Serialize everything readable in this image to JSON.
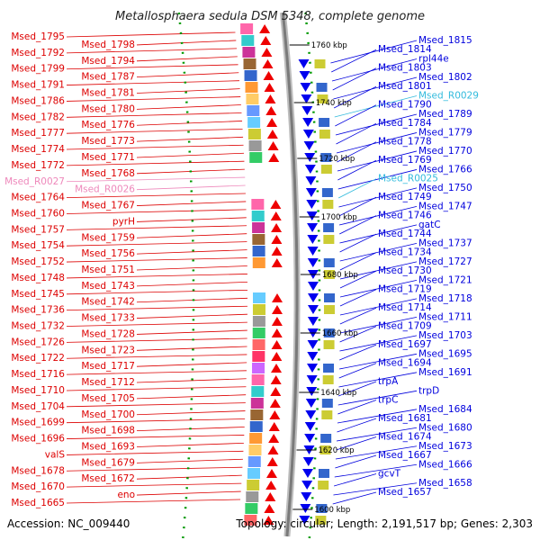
{
  "title": "Metallosphaera sedula DSM 5348, complete genome",
  "footer": {
    "accession": "Accession: NC_009440",
    "summary": "Topology: circular; Length: 2,191,517 bp; Genes: 2,303"
  },
  "colors": {
    "left_label": "#dd0000",
    "right_label": "#0000dd",
    "rna_left": "#ee88bb",
    "rna_right": "#33bbdd",
    "tick": "#009900"
  },
  "scale_ticks": [
    "1760 kbp",
    "1740 kbp",
    "1720 kbp",
    "1700 kbp",
    "1680 kbp",
    "1660 kbp",
    "1640 kbp",
    "1620 kbp",
    "1600 kbp"
  ],
  "left_labels": [
    {
      "t": "Msed_1795",
      "k": "g"
    },
    {
      "t": "Msed_1798",
      "k": "g"
    },
    {
      "t": "Msed_1792",
      "k": "g"
    },
    {
      "t": "Msed_1794",
      "k": "g"
    },
    {
      "t": "Msed_1799",
      "k": "g"
    },
    {
      "t": "Msed_1787",
      "k": "g"
    },
    {
      "t": "Msed_1791",
      "k": "g"
    },
    {
      "t": "Msed_1781",
      "k": "g"
    },
    {
      "t": "Msed_1786",
      "k": "g"
    },
    {
      "t": "Msed_1780",
      "k": "g"
    },
    {
      "t": "Msed_1782",
      "k": "g"
    },
    {
      "t": "Msed_1776",
      "k": "g"
    },
    {
      "t": "Msed_1777",
      "k": "g"
    },
    {
      "t": "Msed_1773",
      "k": "g"
    },
    {
      "t": "Msed_1774",
      "k": "g"
    },
    {
      "t": "Msed_1771",
      "k": "g"
    },
    {
      "t": "Msed_1772",
      "k": "g"
    },
    {
      "t": "Msed_1768",
      "k": "g"
    },
    {
      "t": "Msed_R0027",
      "k": "r"
    },
    {
      "t": "Msed_R0026",
      "k": "r"
    },
    {
      "t": "Msed_1764",
      "k": "g"
    },
    {
      "t": "Msed_1767",
      "k": "g"
    },
    {
      "t": "Msed_1760",
      "k": "g"
    },
    {
      "t": "pyrH",
      "k": "g"
    },
    {
      "t": "Msed_1757",
      "k": "g"
    },
    {
      "t": "Msed_1759",
      "k": "g"
    },
    {
      "t": "Msed_1754",
      "k": "g"
    },
    {
      "t": "Msed_1756",
      "k": "g"
    },
    {
      "t": "Msed_1752",
      "k": "g"
    },
    {
      "t": "Msed_1751",
      "k": "g"
    },
    {
      "t": "Msed_1748",
      "k": "g"
    },
    {
      "t": "Msed_1743",
      "k": "g"
    },
    {
      "t": "Msed_1745",
      "k": "g"
    },
    {
      "t": "Msed_1742",
      "k": "g"
    },
    {
      "t": "Msed_1736",
      "k": "g"
    },
    {
      "t": "Msed_1733",
      "k": "g"
    },
    {
      "t": "Msed_1732",
      "k": "g"
    },
    {
      "t": "Msed_1728",
      "k": "g"
    },
    {
      "t": "Msed_1726",
      "k": "g"
    },
    {
      "t": "Msed_1723",
      "k": "g"
    },
    {
      "t": "Msed_1722",
      "k": "g"
    },
    {
      "t": "Msed_1717",
      "k": "g"
    },
    {
      "t": "Msed_1716",
      "k": "g"
    },
    {
      "t": "Msed_1712",
      "k": "g"
    },
    {
      "t": "Msed_1710",
      "k": "g"
    },
    {
      "t": "Msed_1705",
      "k": "g"
    },
    {
      "t": "Msed_1704",
      "k": "g"
    },
    {
      "t": "Msed_1700",
      "k": "g"
    },
    {
      "t": "Msed_1699",
      "k": "g"
    },
    {
      "t": "Msed_1698",
      "k": "g"
    },
    {
      "t": "Msed_1696",
      "k": "g"
    },
    {
      "t": "Msed_1693",
      "k": "g"
    },
    {
      "t": "valS",
      "k": "g"
    },
    {
      "t": "Msed_1679",
      "k": "g"
    },
    {
      "t": "Msed_1678",
      "k": "g"
    },
    {
      "t": "Msed_1672",
      "k": "g"
    },
    {
      "t": "Msed_1670",
      "k": "g"
    },
    {
      "t": "eno",
      "k": "g"
    },
    {
      "t": "Msed_1665",
      "k": "g"
    }
  ],
  "right_labels": [
    {
      "t": "Msed_1815",
      "k": "g"
    },
    {
      "t": "Msed_1814",
      "k": "g"
    },
    {
      "t": "rpl44e",
      "k": "g"
    },
    {
      "t": "Msed_1803",
      "k": "g"
    },
    {
      "t": "Msed_1802",
      "k": "g"
    },
    {
      "t": "Msed_1801",
      "k": "g"
    },
    {
      "t": "Msed_R0029",
      "k": "r"
    },
    {
      "t": "Msed_1790",
      "k": "g"
    },
    {
      "t": "Msed_1789",
      "k": "g"
    },
    {
      "t": "Msed_1784",
      "k": "g"
    },
    {
      "t": "Msed_1779",
      "k": "g"
    },
    {
      "t": "Msed_1778",
      "k": "g"
    },
    {
      "t": "Msed_1770",
      "k": "g"
    },
    {
      "t": "Msed_1769",
      "k": "g"
    },
    {
      "t": "Msed_1766",
      "k": "g"
    },
    {
      "t": "Msed_R0025",
      "k": "r"
    },
    {
      "t": "Msed_1750",
      "k": "g"
    },
    {
      "t": "Msed_1749",
      "k": "g"
    },
    {
      "t": "Msed_1747",
      "k": "g"
    },
    {
      "t": "Msed_1746",
      "k": "g"
    },
    {
      "t": "gatC",
      "k": "g"
    },
    {
      "t": "Msed_1744",
      "k": "g"
    },
    {
      "t": "Msed_1737",
      "k": "g"
    },
    {
      "t": "Msed_1734",
      "k": "g"
    },
    {
      "t": "Msed_1727",
      "k": "g"
    },
    {
      "t": "Msed_1730",
      "k": "g"
    },
    {
      "t": "Msed_1721",
      "k": "g"
    },
    {
      "t": "Msed_1719",
      "k": "g"
    },
    {
      "t": "Msed_1718",
      "k": "g"
    },
    {
      "t": "Msed_1714",
      "k": "g"
    },
    {
      "t": "Msed_1711",
      "k": "g"
    },
    {
      "t": "Msed_1709",
      "k": "g"
    },
    {
      "t": "Msed_1703",
      "k": "g"
    },
    {
      "t": "Msed_1697",
      "k": "g"
    },
    {
      "t": "Msed_1695",
      "k": "g"
    },
    {
      "t": "Msed_1694",
      "k": "g"
    },
    {
      "t": "Msed_1691",
      "k": "g"
    },
    {
      "t": "trpA",
      "k": "g"
    },
    {
      "t": "trpD",
      "k": "g"
    },
    {
      "t": "trpC",
      "k": "g"
    },
    {
      "t": "Msed_1684",
      "k": "g"
    },
    {
      "t": "Msed_1681",
      "k": "g"
    },
    {
      "t": "Msed_1680",
      "k": "g"
    },
    {
      "t": "Msed_1674",
      "k": "g"
    },
    {
      "t": "Msed_1673",
      "k": "g"
    },
    {
      "t": "Msed_1667",
      "k": "g"
    },
    {
      "t": "Msed_1666",
      "k": "g"
    },
    {
      "t": "gcvT",
      "k": "g"
    },
    {
      "t": "Msed_1658",
      "k": "g"
    },
    {
      "t": "Msed_1657",
      "k": "g"
    }
  ]
}
